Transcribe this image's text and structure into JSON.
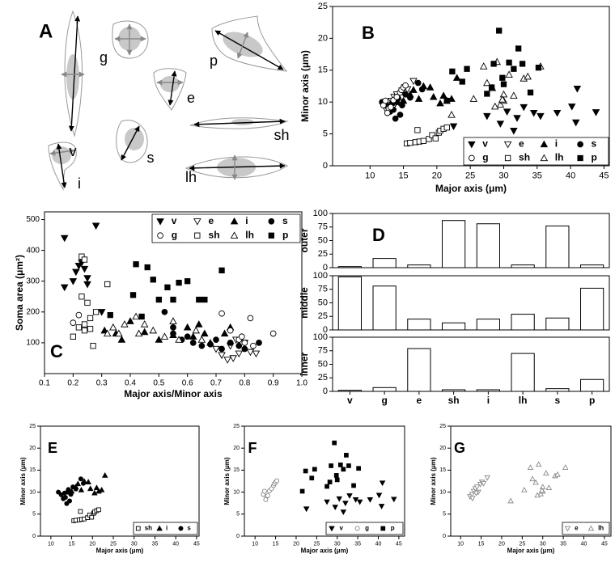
{
  "panel_a": {
    "label": "A",
    "cells": [
      "v",
      "g",
      "e",
      "p",
      "sh",
      "s",
      "i",
      "lh"
    ]
  },
  "chart_data": [
    {
      "type": "scatter",
      "panel": "B",
      "xlabel": "Major axis (μm)",
      "ylabel": "Minor axis (μm)",
      "xlim": [
        4.4,
        45.8
      ],
      "ylim": [
        0,
        25
      ],
      "xticks": [
        10,
        15,
        20,
        25,
        30,
        35,
        40,
        45
      ],
      "yticks": [
        0,
        5,
        10,
        15,
        20,
        25
      ],
      "legend": "lower right",
      "series": [
        {
          "name": "v",
          "marker": "triangle-down",
          "color": "#000",
          "x": [
            22.5,
            27.5,
            29.5,
            30.5,
            31.5,
            32,
            33,
            34.5,
            35.5,
            38,
            40.2,
            41,
            40.8,
            43.8
          ],
          "values": [
            6.2,
            7.8,
            6.6,
            8.5,
            5.5,
            7.5,
            9.2,
            8.3,
            7.8,
            8.3,
            9.3,
            12.1,
            6.8,
            8.4
          ]
        },
        {
          "name": "e",
          "marker": "triangle-down-open",
          "color": "#000",
          "x": [
            12.3,
            12.8,
            13.2,
            13.6,
            14,
            14.3,
            14.8,
            15.2,
            15.6,
            16.5,
            12.9,
            13.8
          ],
          "values": [
            9,
            9.5,
            10.2,
            10.8,
            11.2,
            10,
            11.8,
            12.3,
            12,
            13.3,
            8.6,
            9.8
          ]
        },
        {
          "name": "i",
          "marker": "triangle-up",
          "color": "#000",
          "x": [
            15,
            16,
            16.5,
            17.3,
            18,
            19,
            19.5,
            20.5,
            21,
            21.5,
            22.2,
            23
          ],
          "values": [
            10.2,
            11.2,
            11.9,
            10.5,
            12.5,
            12.3,
            10.8,
            9.8,
            11,
            10.2,
            10.5,
            13.8
          ]
        },
        {
          "name": "s",
          "marker": "circle",
          "color": "#000",
          "x": [
            11.8,
            12.5,
            13,
            13.3,
            13.8,
            14.2,
            14.5,
            14.8,
            15.3,
            16,
            17.2,
            17.8,
            13.5,
            14
          ],
          "values": [
            10,
            9.4,
            8.5,
            9.8,
            7.4,
            10.6,
            8,
            9.5,
            11.2,
            10.7,
            13,
            12,
            8.8,
            10
          ]
        },
        {
          "name": "g",
          "marker": "circle-open",
          "color": "#000",
          "x": [
            12,
            12.3,
            12.8,
            13.5,
            14,
            14.5,
            14.7,
            15,
            15.3,
            12.6,
            13.1
          ],
          "values": [
            9.5,
            10.2,
            9,
            10.3,
            10.8,
            11.5,
            11.9,
            12.3,
            12.6,
            8.3,
            9.2
          ]
        },
        {
          "name": "sh",
          "marker": "square-open",
          "color": "#000",
          "x": [
            15.5,
            16,
            16.8,
            17.4,
            18,
            18.8,
            19.3,
            19.8,
            20.3,
            20.5,
            21,
            21.5,
            17.1
          ],
          "values": [
            3.5,
            3.6,
            3.7,
            3.8,
            3.9,
            4.2,
            4.8,
            4.3,
            5.2,
            5.5,
            5.8,
            6,
            5.6
          ]
        },
        {
          "name": "lh",
          "marker": "triangle-up-open",
          "color": "#000",
          "x": [
            22.2,
            25.5,
            27,
            27.5,
            28.3,
            29,
            29.5,
            30,
            30.8,
            31.5,
            33,
            33.6,
            35.5,
            30,
            28.7,
            29.8
          ],
          "values": [
            8,
            10.5,
            15.6,
            13,
            12.2,
            16.3,
            9.6,
            10.2,
            14.3,
            11,
            13.7,
            14,
            15.6,
            11.2,
            9.3,
            10.4
          ]
        },
        {
          "name": "p",
          "marker": "square",
          "color": "#000",
          "x": [
            21.5,
            22.3,
            23.8,
            24.5,
            27.5,
            28.5,
            29.3,
            29.8,
            30.8,
            31.5,
            32.2,
            32.8,
            34,
            35.2,
            28.2,
            30
          ],
          "values": [
            10.2,
            14.8,
            13.2,
            15.2,
            11.3,
            16,
            21.2,
            13.8,
            16.2,
            15.2,
            18.4,
            16,
            11.5,
            15.4,
            12.3,
            12.8
          ]
        }
      ]
    },
    {
      "type": "scatter",
      "panel": "C",
      "xlabel": "Major axis/Minor axis",
      "ylabel": "Soma area (μm²)",
      "xlim": [
        0.1,
        1.0
      ],
      "ylim": [
        0,
        525
      ],
      "xticks": [
        0.1,
        0.2,
        0.3,
        0.4,
        0.5,
        0.6,
        0.7,
        0.8,
        0.9,
        {
          "value": 1,
          "label": "1.0"
        }
      ],
      "yticks": [
        100,
        200,
        300,
        400,
        500
      ],
      "legend": "upper right",
      "series": [
        {
          "name": "v",
          "marker": "triangle-down",
          "color": "#000",
          "x": [
            0.17,
            0.17,
            0.2,
            0.21,
            0.22,
            0.23,
            0.24,
            0.25,
            0.28,
            0.3,
            0.25
          ],
          "values": [
            440,
            280,
            300,
            330,
            350,
            360,
            340,
            310,
            480,
            200,
            290
          ]
        },
        {
          "name": "e",
          "marker": "triangle-down-open",
          "color": "#000",
          "x": [
            0.72,
            0.74,
            0.76,
            0.78,
            0.8,
            0.82,
            0.7,
            0.77,
            0.84,
            0.75
          ],
          "values": [
            60,
            45,
            50,
            65,
            100,
            70,
            80,
            110,
            65,
            90
          ]
        },
        {
          "name": "i",
          "marker": "triangle-up",
          "color": "#000",
          "x": [
            0.31,
            0.35,
            0.37,
            0.4,
            0.45,
            0.5,
            0.55,
            0.6,
            0.62,
            0.64,
            0.68,
            0.73,
            0.75,
            0.66
          ],
          "values": [
            140,
            130,
            110,
            170,
            135,
            110,
            125,
            150,
            120,
            160,
            100,
            130,
            150,
            130
          ]
        },
        {
          "name": "s",
          "marker": "circle",
          "color": "#000",
          "x": [
            0.52,
            0.55,
            0.58,
            0.6,
            0.62,
            0.65,
            0.68,
            0.7,
            0.72,
            0.75,
            0.78,
            0.8,
            0.85,
            0.55
          ],
          "values": [
            200,
            130,
            110,
            120,
            100,
            90,
            95,
            110,
            80,
            100,
            90,
            80,
            100,
            150
          ]
        },
        {
          "name": "g",
          "marker": "circle-open",
          "color": "#000",
          "x": [
            0.2,
            0.22,
            0.72,
            0.78,
            0.8,
            0.82,
            0.83,
            0.9,
            0.75,
            0.79
          ],
          "values": [
            165,
            190,
            195,
            110,
            100,
            180,
            90,
            130,
            140,
            120
          ]
        },
        {
          "name": "sh",
          "marker": "square-open",
          "color": "#000",
          "x": [
            0.2,
            0.22,
            0.23,
            0.24,
            0.23,
            0.24,
            0.25,
            0.26,
            0.27,
            0.28,
            0.24,
            0.32,
            0.26
          ],
          "values": [
            120,
            150,
            380,
            370,
            250,
            140,
            230,
            180,
            90,
            200,
            160,
            290,
            145
          ]
        },
        {
          "name": "lh",
          "marker": "triangle-up-open",
          "color": "#000",
          "x": [
            0.32,
            0.34,
            0.36,
            0.38,
            0.42,
            0.43,
            0.45,
            0.48,
            0.52,
            0.55,
            0.57,
            0.63,
            0.65
          ],
          "values": [
            130,
            150,
            130,
            160,
            185,
            130,
            160,
            140,
            120,
            170,
            110,
            140,
            110
          ]
        },
        {
          "name": "p",
          "marker": "square",
          "color": "#000",
          "x": [
            0.33,
            0.41,
            0.42,
            0.44,
            0.46,
            0.48,
            0.5,
            0.53,
            0.55,
            0.57,
            0.6,
            0.64,
            0.66,
            0.72
          ],
          "values": [
            190,
            255,
            355,
            185,
            345,
            305,
            240,
            280,
            240,
            295,
            300,
            240,
            240,
            335
          ]
        }
      ]
    },
    {
      "type": "bar_panels",
      "panel": "D",
      "color": "#fff",
      "ylim": [
        0,
        100
      ],
      "yticks": [
        0,
        25,
        50,
        75,
        100
      ],
      "categories": [
        "v",
        "g",
        "e",
        "sh",
        "i",
        "lh",
        "s",
        "p"
      ],
      "panels": [
        {
          "name": "outer",
          "values": [
            2,
            17,
            5,
            87,
            81,
            5,
            77,
            5
          ]
        },
        {
          "name": "middle",
          "values": [
            98,
            81,
            20,
            13,
            20,
            29,
            22,
            77
          ]
        },
        {
          "name": "inner",
          "values": [
            2,
            7,
            79,
            3,
            3,
            70,
            5,
            22
          ]
        }
      ]
    },
    {
      "type": "scatter",
      "panel": "E",
      "xlabel": "Major axis (μm)",
      "ylabel": "Minor axis (μm)",
      "xlim": [
        7.5,
        45.6
      ],
      "ylim": [
        0,
        25
      ],
      "xticks": [
        10,
        15,
        20,
        25,
        30,
        35,
        40,
        45
      ],
      "yticks": [
        0,
        5,
        10,
        15,
        20,
        25
      ],
      "legend": "lower right",
      "series": [
        {
          "name": "sh",
          "marker": "square-open",
          "color": "#000",
          "x": [
            15.5,
            16,
            16.8,
            17.4,
            18,
            18.8,
            19.3,
            19.8,
            20.3,
            20.5,
            21,
            21.5,
            17.1
          ],
          "values": [
            3.5,
            3.6,
            3.7,
            3.8,
            3.9,
            4.2,
            4.8,
            4.3,
            5.2,
            5.5,
            5.8,
            6,
            5.6
          ]
        },
        {
          "name": "i",
          "marker": "triangle-up",
          "color": "#000",
          "x": [
            15,
            16,
            16.5,
            17.3,
            18,
            19,
            19.5,
            20.5,
            21,
            21.5,
            22.2,
            23
          ],
          "values": [
            10.2,
            11.2,
            11.9,
            10.5,
            12.5,
            12.3,
            10.8,
            9.8,
            11,
            10.2,
            10.5,
            13.8
          ]
        },
        {
          "name": "s",
          "marker": "circle",
          "color": "#000",
          "x": [
            11.8,
            12.5,
            13,
            13.3,
            13.8,
            14.2,
            14.5,
            14.8,
            15.3,
            16,
            17.2,
            17.8,
            13.5,
            14
          ],
          "values": [
            10,
            9.4,
            8.5,
            9.8,
            7.4,
            10.6,
            8,
            9.5,
            11.2,
            10.7,
            13,
            12,
            8.8,
            10
          ]
        }
      ]
    },
    {
      "type": "scatter",
      "panel": "F",
      "xlabel": "Major axis (μm)",
      "ylabel": "Minor axis (μm)",
      "xlim": [
        7.4,
        46.4
      ],
      "ylim": [
        0,
        25
      ],
      "xticks": [
        10,
        15,
        20,
        25,
        30,
        35,
        40,
        45
      ],
      "yticks": [
        0,
        5,
        10,
        15,
        20,
        25
      ],
      "legend": "lower right",
      "series": [
        {
          "name": "v",
          "marker": "triangle-down",
          "color": "#000",
          "x": [
            22.5,
            27.5,
            29.5,
            30.5,
            31.5,
            32,
            33,
            34.5,
            35.5,
            38,
            40.2,
            41,
            40.8,
            43.8
          ],
          "values": [
            6.2,
            7.8,
            6.6,
            8.5,
            5.5,
            7.5,
            9.2,
            8.3,
            7.8,
            8.3,
            9.3,
            12.1,
            6.8,
            8.4
          ]
        },
        {
          "name": "g",
          "marker": "circle-open",
          "color": "#888",
          "x": [
            12,
            12.3,
            12.8,
            13.5,
            14,
            14.5,
            14.7,
            15,
            15.3,
            12.6,
            13.1
          ],
          "values": [
            9.5,
            10.2,
            9,
            10.3,
            10.8,
            11.5,
            11.9,
            12.3,
            12.6,
            8.3,
            9.2
          ]
        },
        {
          "name": "p",
          "marker": "square",
          "color": "#000",
          "x": [
            21.5,
            22.3,
            23.8,
            24.5,
            27.5,
            28.5,
            29.3,
            29.8,
            30.8,
            31.5,
            32.2,
            32.8,
            34,
            35.2,
            28.2,
            30
          ],
          "values": [
            10.2,
            14.8,
            13.2,
            15.2,
            11.3,
            16,
            21.2,
            13.8,
            16.2,
            15.2,
            18.4,
            16,
            11.5,
            15.4,
            12.3,
            12.8
          ]
        }
      ]
    },
    {
      "type": "scatter",
      "panel": "G",
      "xlabel": "Major axis (μm)",
      "ylabel": "Minor axis (μm)",
      "xlim": [
        7.6,
        46.6
      ],
      "ylim": [
        0,
        25
      ],
      "xticks": [
        10,
        15,
        20,
        25,
        30,
        35,
        40,
        45
      ],
      "yticks": [
        0,
        5,
        10,
        15,
        20,
        25
      ],
      "legend": "lower right",
      "series": [
        {
          "name": "e",
          "marker": "triangle-down-open",
          "color": "#888",
          "x": [
            12.3,
            12.8,
            13.2,
            13.6,
            14,
            14.3,
            14.8,
            15.2,
            15.6,
            16.5,
            12.9,
            13.8
          ],
          "values": [
            9,
            9.5,
            10.2,
            10.8,
            11.2,
            10,
            11.8,
            12.3,
            12,
            13.3,
            8.6,
            9.8
          ]
        },
        {
          "name": "lh",
          "marker": "triangle-up-open",
          "color": "#888",
          "x": [
            22.2,
            25.5,
            27,
            27.5,
            28.3,
            29,
            29.5,
            30,
            30.8,
            31.5,
            33,
            33.6,
            35.5,
            30,
            28.7,
            29.8
          ],
          "values": [
            8,
            10.5,
            15.6,
            13,
            12.2,
            16.3,
            9.6,
            10.2,
            14.3,
            11,
            13.7,
            14,
            15.6,
            11.2,
            9.3,
            10.4
          ]
        }
      ]
    }
  ]
}
